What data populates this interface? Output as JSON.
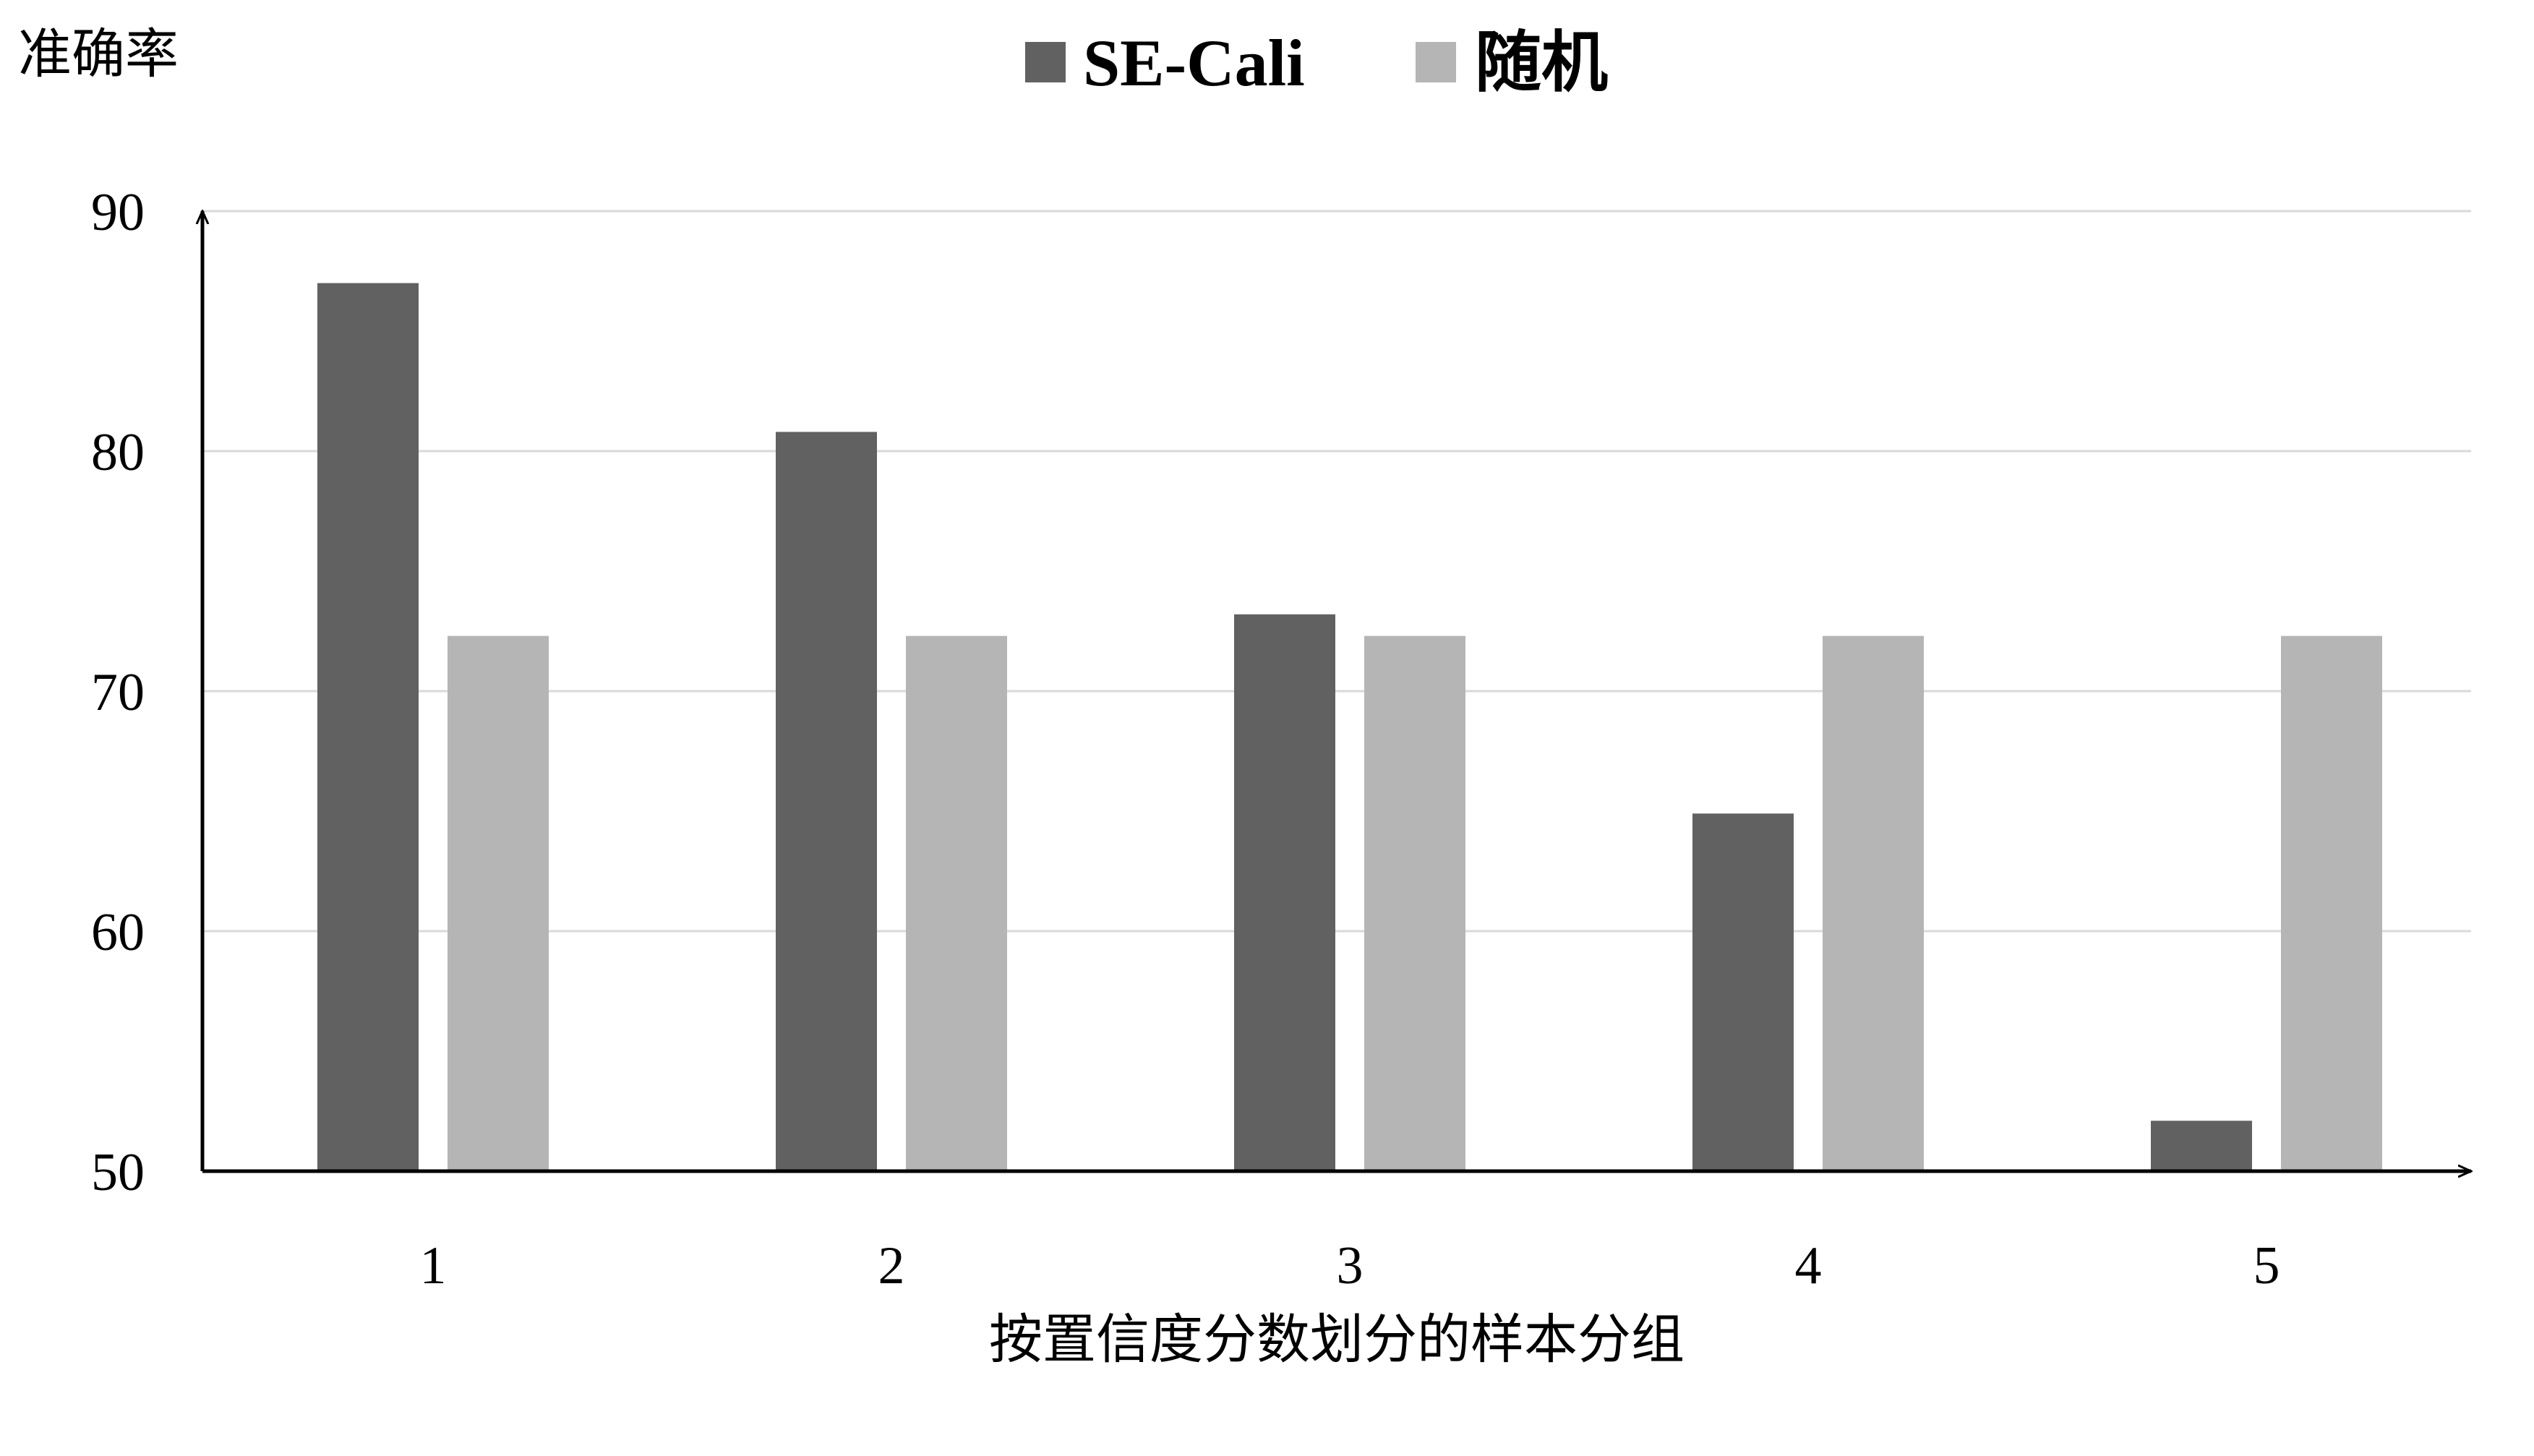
{
  "chart_data": {
    "type": "bar",
    "categories": [
      "1",
      "2",
      "3",
      "4",
      "5"
    ],
    "series": [
      {
        "name": "SE-Cali",
        "values": [
          87.0,
          80.8,
          73.2,
          64.9,
          52.1
        ],
        "color": "#616161"
      },
      {
        "name": "随机",
        "values": [
          72.3,
          72.3,
          72.3,
          72.3,
          72.3
        ],
        "color": "#b5b5b5"
      }
    ],
    "title": "",
    "xlabel": "按置信度分数划分的样本分组",
    "ylabel": "准确率",
    "ylim": [
      50,
      90
    ],
    "yticks": [
      50,
      60,
      70,
      80,
      90
    ],
    "grid": true,
    "grid_color": "#d9d9d9",
    "legend_position": "top-center"
  }
}
